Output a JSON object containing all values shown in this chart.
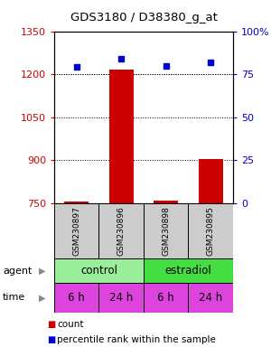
{
  "title": "GDS3180 / D38380_g_at",
  "samples": [
    "GSM230897",
    "GSM230896",
    "GSM230898",
    "GSM230895"
  ],
  "counts": [
    755,
    1215,
    758,
    905
  ],
  "percentiles": [
    79,
    84,
    80,
    82
  ],
  "ylim_left": [
    750,
    1350
  ],
  "ylim_right": [
    0,
    100
  ],
  "yticks_left": [
    750,
    900,
    1050,
    1200,
    1350
  ],
  "yticks_right": [
    0,
    25,
    50,
    75,
    100
  ],
  "yticklabels_right": [
    "0",
    "25",
    "50",
    "75",
    "100%"
  ],
  "bar_color": "#cc0000",
  "dot_color": "#0000cc",
  "agent_colors": [
    "#99ee99",
    "#44dd44"
  ],
  "time_color": "#dd44dd",
  "time_labels": [
    "6 h",
    "24 h",
    "6 h",
    "24 h"
  ],
  "sample_bg_color": "#cccccc",
  "left_tick_color": "#cc0000",
  "right_tick_color": "#0000cc",
  "fig_width": 3.0,
  "fig_height": 3.84,
  "dpi": 100
}
